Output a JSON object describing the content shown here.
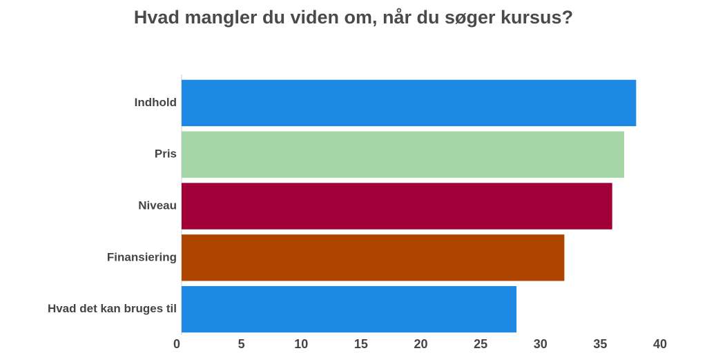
{
  "chart_data": {
    "type": "bar",
    "orientation": "horizontal",
    "title": "Hvad mangler du viden om, når du søger kursus?",
    "categories": [
      "Indhold",
      "Pris",
      "Niveau",
      "Finansiering",
      "Hvad det kan bruges til"
    ],
    "values": [
      38,
      37,
      36,
      32,
      28
    ],
    "colors": [
      "#1e88e5",
      "#a5d6a7",
      "#a00037",
      "#ad4500",
      "#1e88e5"
    ],
    "xlim": [
      0,
      40
    ],
    "xticks": [
      0,
      5,
      10,
      15,
      20,
      25,
      30,
      35,
      40
    ],
    "grid": false
  }
}
